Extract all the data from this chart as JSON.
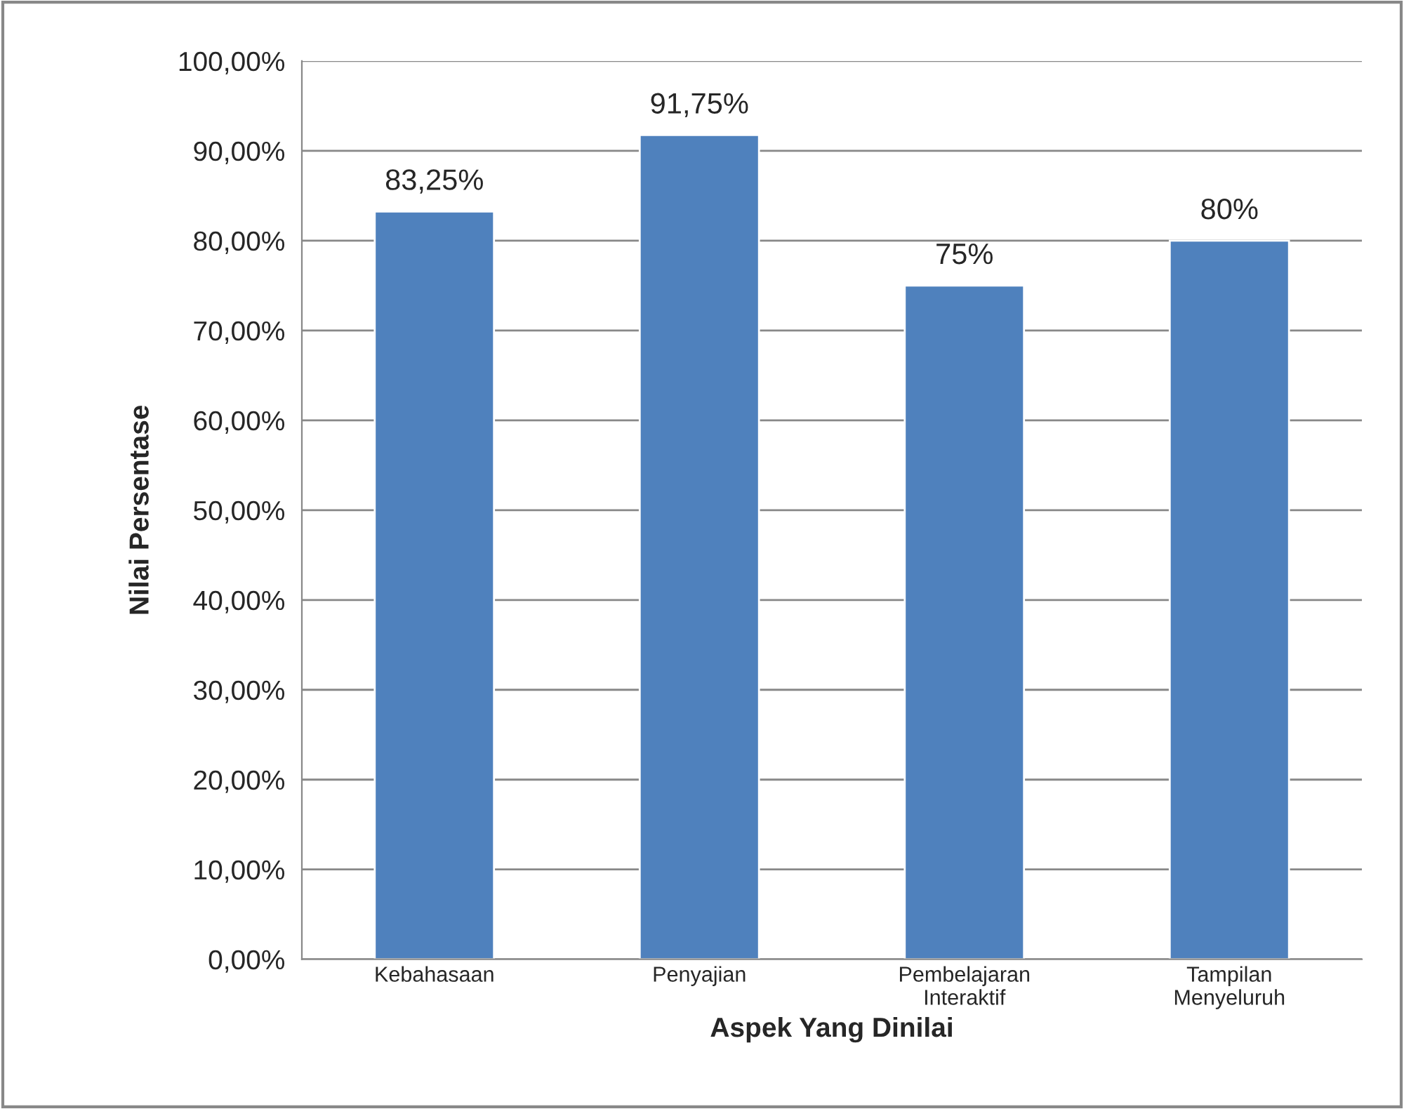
{
  "chart_data": {
    "type": "bar",
    "xlabel": "Aspek Yang Dinilai",
    "ylabel": "Nilai Persentase",
    "categories": [
      "Kebahasaan",
      "Penyajian",
      "Pembelajaran\nInteraktif",
      "Tampilan\nMenyeluruh"
    ],
    "values": [
      83.25,
      91.75,
      75,
      80
    ],
    "value_labels": [
      "83,25%",
      "91,75%",
      "75%",
      "80%"
    ],
    "color": "#4f81bd",
    "ylim": [
      0,
      100
    ],
    "yticks": [
      {
        "value": 0,
        "label": "0,00%"
      },
      {
        "value": 10,
        "label": "10,00%"
      },
      {
        "value": 20,
        "label": "20,00%"
      },
      {
        "value": 30,
        "label": "30,00%"
      },
      {
        "value": 40,
        "label": "40,00%"
      },
      {
        "value": 50,
        "label": "50,00%"
      },
      {
        "value": 60,
        "label": "60,00%"
      },
      {
        "value": 70,
        "label": "70,00%"
      },
      {
        "value": 80,
        "label": "80,00%"
      },
      {
        "value": 90,
        "label": "90,00%"
      },
      {
        "value": 100,
        "label": "100,00%"
      }
    ],
    "grid": "y"
  }
}
